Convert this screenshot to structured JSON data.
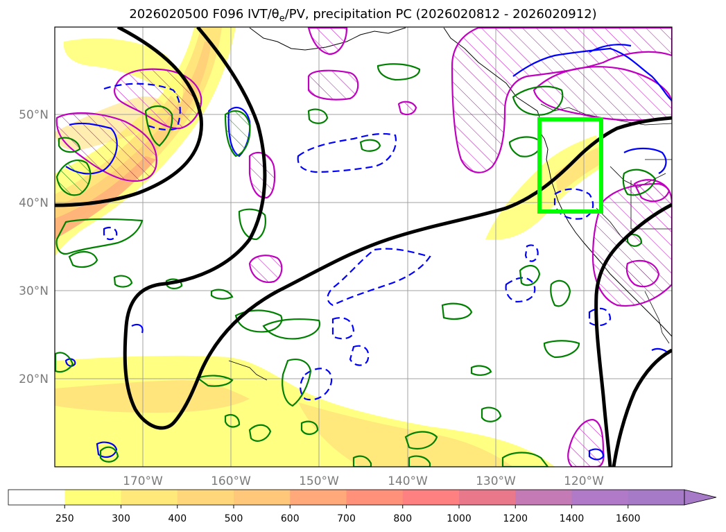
{
  "title": {
    "prefix": "2026020500 F096 IVT/θ",
    "sub": "e",
    "suffix": "/PV, precipitation PC (2026020812 - 2026020912)"
  },
  "map": {
    "lon_range": [
      -180,
      -110
    ],
    "lat_range": [
      10,
      60
    ],
    "colors": {
      "ivt_fill": [
        "#ffff7a",
        "#ffe27a",
        "#ffcf7a",
        "#ffb07a"
      ],
      "pv_contour": "#000000",
      "precip_contour": "#008000",
      "theta_e_contour": "#0000ff",
      "hatch_contour": "#bf00bf",
      "box": "#00ff00",
      "coast": "#000000",
      "grid": "#a0a0a0"
    },
    "lon_ticks": [
      {
        "value": -170,
        "label": "170°W"
      },
      {
        "value": -160,
        "label": "160°W"
      },
      {
        "value": -150,
        "label": "150°W"
      },
      {
        "value": -140,
        "label": "140°W"
      },
      {
        "value": -130,
        "label": "130°W"
      },
      {
        "value": -120,
        "label": "120°W"
      }
    ],
    "lat_ticks": [
      {
        "value": 50,
        "label": "50°N"
      },
      {
        "value": 40,
        "label": "40°N"
      },
      {
        "value": 30,
        "label": "30°N"
      },
      {
        "value": 20,
        "label": "20°N"
      }
    ],
    "highlight_box": {
      "lon": [
        -125,
        -118
      ],
      "lat": [
        39,
        49.5
      ]
    }
  },
  "colorbar": {
    "labels": [
      "250",
      "300",
      "400",
      "500",
      "600",
      "700",
      "800",
      "1000",
      "1200",
      "1400",
      "1600"
    ],
    "colors": [
      "#ffffff",
      "#ffff7a",
      "#ffe97a",
      "#ffd77a",
      "#ffc77a",
      "#ffa87a",
      "#ff907a",
      "#ff8080",
      "#e8788a",
      "#c47ab4",
      "#b07ac8",
      "#a77ac8"
    ]
  }
}
